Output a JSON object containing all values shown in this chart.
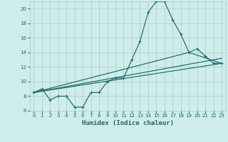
{
  "xlabel": "Humidex (Indice chaleur)",
  "bg_color": "#ceecea",
  "grid_color": "#aaccca",
  "line_color": "#1a6b6b",
  "xlim": [
    -0.5,
    23.5
  ],
  "ylim": [
    6,
    21
  ],
  "yticks": [
    6,
    8,
    10,
    12,
    14,
    16,
    18,
    20
  ],
  "xticks": [
    0,
    1,
    2,
    3,
    4,
    5,
    6,
    7,
    8,
    9,
    10,
    11,
    12,
    13,
    14,
    15,
    16,
    17,
    18,
    19,
    20,
    21,
    22,
    23
  ],
  "main_line_x": [
    0,
    1,
    2,
    3,
    4,
    5,
    6,
    7,
    8,
    9,
    10,
    11,
    12,
    13,
    14,
    15,
    16,
    17,
    18,
    19,
    20,
    21,
    22,
    23
  ],
  "main_line_y": [
    8.5,
    9.0,
    7.5,
    8.0,
    8.0,
    6.5,
    6.5,
    8.5,
    8.5,
    10.0,
    10.5,
    10.5,
    13.0,
    15.5,
    19.5,
    21.0,
    21.0,
    18.5,
    16.5,
    14.0,
    14.5,
    13.5,
    12.5,
    12.5
  ],
  "line2_x": [
    0,
    23
  ],
  "line2_y": [
    8.5,
    12.5
  ],
  "line3_x": [
    0,
    19,
    23
  ],
  "line3_y": [
    8.5,
    14.0,
    12.5
  ],
  "line4_x": [
    0,
    23
  ],
  "line4_y": [
    8.5,
    13.2
  ]
}
